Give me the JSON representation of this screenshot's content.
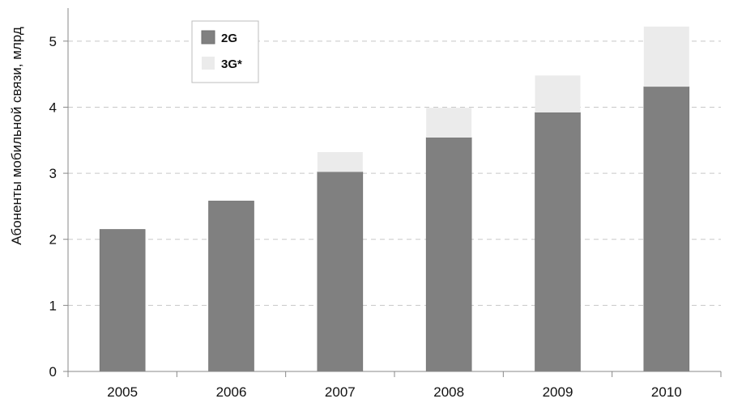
{
  "chart_data": {
    "type": "bar",
    "stacked": true,
    "title": "",
    "xlabel": "",
    "ylabel": "Абоненты мобильной связи, млрд",
    "categories": [
      "2005",
      "2006",
      "2007",
      "2008",
      "2009",
      "2010"
    ],
    "series": [
      {
        "name": "2G",
        "values": [
          2.15,
          2.58,
          3.02,
          3.54,
          3.92,
          4.31
        ],
        "color": "#808080"
      },
      {
        "name": "3G*",
        "values": [
          0,
          0,
          0.3,
          0.45,
          0.56,
          0.91
        ],
        "color": "#ebebeb"
      }
    ],
    "ylim": [
      0,
      5.5
    ],
    "yticks": [
      "0",
      "1",
      "2",
      "3",
      "4",
      "5"
    ],
    "grid": "horizontal-dashed",
    "legend": "top-left"
  }
}
